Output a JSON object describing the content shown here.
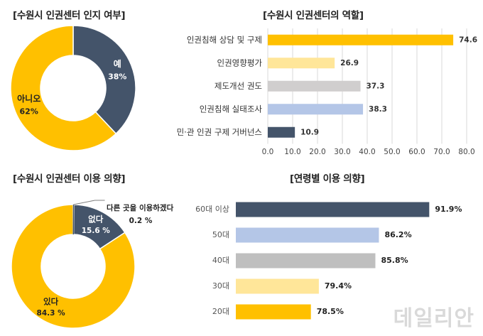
{
  "chart_data": [
    {
      "type": "pie",
      "title": "[수원시 인권센터 인지 여부]",
      "slices": [
        {
          "label": "예",
          "value": 38,
          "value_label": "38%",
          "color": "#44546a"
        },
        {
          "label": "아니오",
          "value": 62,
          "value_label": "62%",
          "color": "#ffc000"
        }
      ]
    },
    {
      "type": "bar",
      "orientation": "horizontal",
      "title": "[수원시 인권센터의 역할]",
      "categories": [
        "인권침해 상담 및 구제",
        "인권영향평가",
        "제도개선 권도",
        "인권침해 실태조사",
        "민·관 인권 구제 거버넌스"
      ],
      "values": [
        74.6,
        26.9,
        37.3,
        38.3,
        10.9
      ],
      "value_labels": [
        "74.6",
        "26.9",
        "37.3",
        "38.3",
        "10.9"
      ],
      "colors": [
        "#ffc000",
        "#ffe699",
        "#d0cece",
        "#b4c6e7",
        "#44546a"
      ],
      "xlim": [
        0,
        80
      ],
      "xticks": [
        "0.0",
        "10.0",
        "20.0",
        "30.0",
        "40.0",
        "50.0",
        "60.0",
        "70.0",
        "80.0"
      ]
    },
    {
      "type": "pie",
      "title": "[수원시 인권센터 이용 의향]",
      "slices": [
        {
          "label": "다른 곳을 이용하겠다",
          "value": 0.2,
          "value_label": "0.2 %",
          "color": "#44546a"
        },
        {
          "label": "없다",
          "value": 15.6,
          "value_label": "15.6 %",
          "color": "#44546a"
        },
        {
          "label": "있다",
          "value": 84.3,
          "value_label": "84.3 %",
          "color": "#ffc000"
        }
      ]
    },
    {
      "type": "bar",
      "orientation": "horizontal",
      "title": "[연령별 이용 의향]",
      "categories": [
        "60대 이상",
        "50대",
        "40대",
        "30대",
        "20대"
      ],
      "values": [
        91.9,
        86.2,
        85.8,
        79.4,
        78.5
      ],
      "value_labels": [
        "91.9%",
        "86.2%",
        "85.8%",
        "79.4%",
        "78.5%"
      ],
      "colors": [
        "#44546a",
        "#b4c6e7",
        "#bfbfbf",
        "#ffe699",
        "#ffc000"
      ]
    }
  ],
  "watermark": "데일리안"
}
